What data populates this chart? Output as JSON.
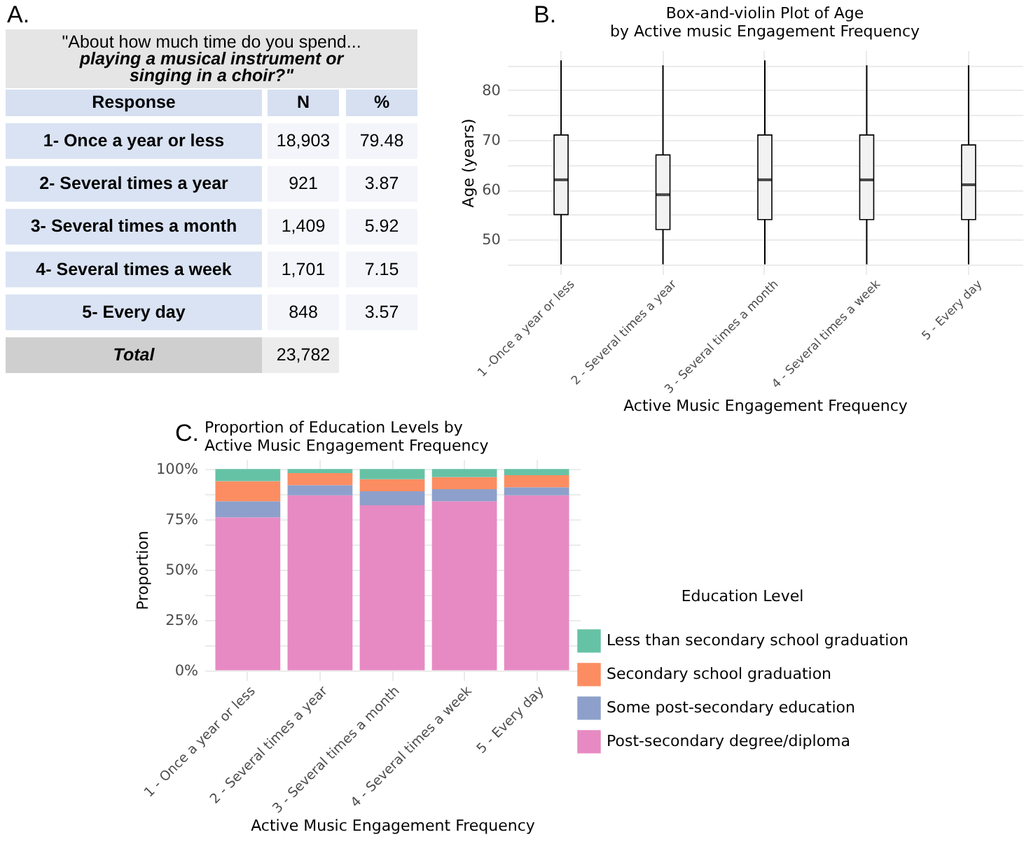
{
  "chart_data": [
    {
      "type": "other",
      "annotations": [
        "A."
      ],
      "title": "\"About how much time do you spend...",
      "subtitle": "playing a musical instrument or\nsinging in a choir?\"",
      "xlabel": "Response",
      "categories": [
        "1- Once a year or less",
        "2- Several times a year",
        "3- Several times a month",
        "4- Several times a week",
        "5- Every day",
        "Total"
      ],
      "series": [
        {
          "name": "N",
          "values": [
            18903,
            921,
            1409,
            1701,
            848,
            23782
          ],
          "value_labels": [
            "18,903",
            "921",
            "1,409",
            "1,701",
            "848",
            "23,782"
          ],
          "colors": [
            "#f3f5fa",
            "#f3f5fa",
            "#f3f5fa",
            "#f3f5fa",
            "#f3f5fa",
            "#ececec"
          ]
        },
        {
          "name": "%",
          "values": [
            79.48,
            3.87,
            5.92,
            7.15,
            3.57,
            null
          ],
          "value_labels": [
            "79.48",
            "3.87",
            "5.92",
            "7.15",
            "3.57",
            null
          ],
          "colors": [
            "#f3f5fa",
            "#f3f5fa",
            "#f3f5fa",
            "#f3f5fa",
            "#f3f5fa",
            null
          ]
        }
      ]
    },
    {
      "type": "box",
      "annotations": [
        "B."
      ],
      "title": "Box-and-violin Plot of Age\nby Active music Engagement Frequency",
      "xlabel": "Active Music Engagement Frequency",
      "ylabel": "Age (years)",
      "categories": [
        "1 -Once a year or less",
        "2 - Several times a year",
        "3 - Several times a month",
        "4 - Several times a week",
        "5 - Every day"
      ],
      "boxes": [
        {
          "low": 45,
          "q1": 55,
          "median": 62,
          "q3": 71,
          "high": 86
        },
        {
          "low": 45,
          "q1": 52,
          "median": 59,
          "q3": 67,
          "high": 85
        },
        {
          "low": 45,
          "q1": 54,
          "median": 62,
          "q3": 71,
          "high": 86
        },
        {
          "low": 45,
          "q1": 54,
          "median": 62,
          "q3": 71,
          "high": 85
        },
        {
          "low": 45,
          "q1": 54,
          "median": 61,
          "q3": 69,
          "high": 85
        }
      ],
      "ylim": [
        43,
        88
      ],
      "yticks": [
        {
          "value": 45,
          "label": null
        },
        50,
        {
          "value": 55,
          "label": null
        },
        60,
        {
          "value": 65,
          "label": null
        },
        70,
        {
          "value": 75,
          "label": null
        },
        80,
        {
          "value": 85,
          "label": null
        }
      ],
      "grid": true
    },
    {
      "type": "bar",
      "stacked": true,
      "annotations": [
        "C."
      ],
      "title": "Proportion of Education Levels by\nActive Music Engagement Frequency",
      "xlabel": "Active Music Engagement Frequency",
      "ylabel": "Proportion",
      "legend_title": "Education Level",
      "legend": "right",
      "grid": true,
      "categories": [
        "1 - Once a year or less",
        "2 - Several times a year",
        "3 - Several times a month",
        "4 - Several times a week",
        "5 - Every day"
      ],
      "ylim": [
        -5,
        105
      ],
      "yticks": [
        {
          "value": 0,
          "label": "0%"
        },
        {
          "value": 12.5,
          "label": null
        },
        {
          "value": 25,
          "label": "25%"
        },
        {
          "value": 37.5,
          "label": null
        },
        {
          "value": 50,
          "label": "50%"
        },
        {
          "value": 62.5,
          "label": null
        },
        {
          "value": 75,
          "label": "75%"
        },
        {
          "value": 87.5,
          "label": null
        },
        {
          "value": 100,
          "label": "100%"
        }
      ],
      "series": [
        {
          "name": "Post-secondary degree/diploma",
          "color": "#e78ac3",
          "values": [
            76,
            87,
            82,
            84,
            87
          ]
        },
        {
          "name": "Some post-secondary education",
          "color": "#8da0cb",
          "values": [
            8,
            5,
            7,
            6,
            4
          ]
        },
        {
          "name": "Secondary school graduation",
          "color": "#fc8d62",
          "values": [
            10,
            6,
            6,
            6,
            6
          ]
        },
        {
          "name": "Less than secondary school graduation",
          "color": "#66c2a5",
          "values": [
            6,
            2,
            5,
            4,
            3
          ]
        }
      ]
    }
  ]
}
